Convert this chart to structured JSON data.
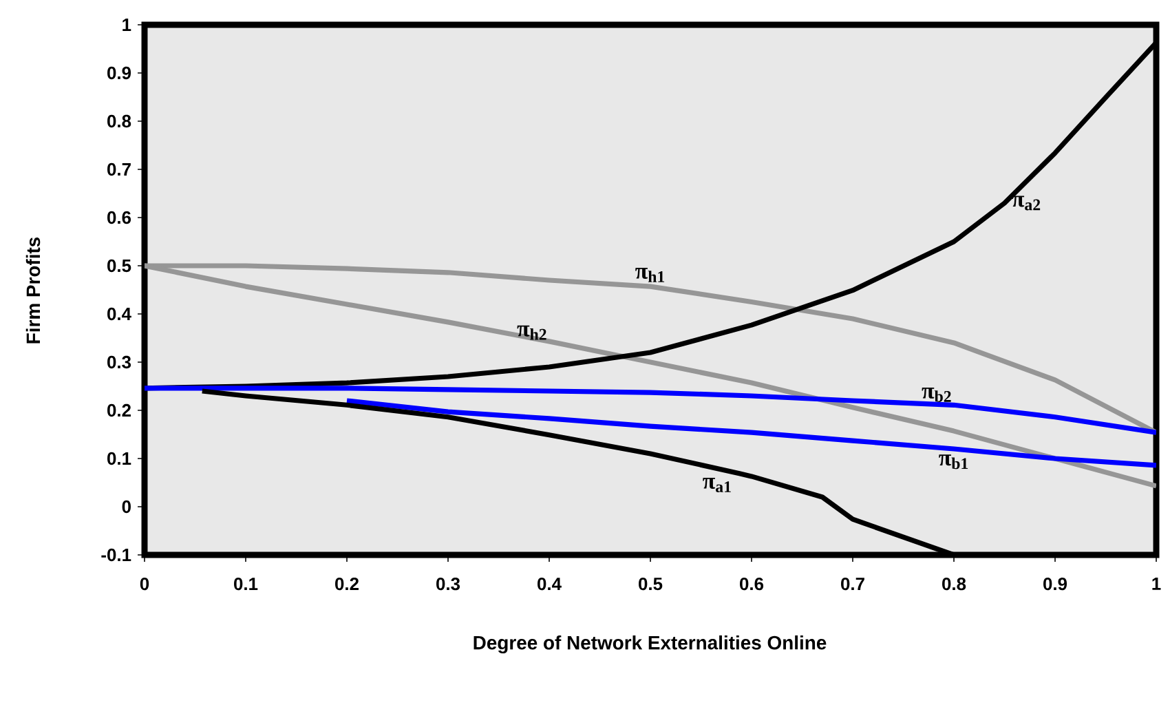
{
  "chart_data": {
    "type": "line",
    "xlabel": "Degree of Network Externalities Online",
    "ylabel": "Firm Profits",
    "xlim": [
      0,
      1
    ],
    "ylim": [
      -0.1,
      1
    ],
    "xticks": [
      0,
      0.1,
      0.2,
      0.3,
      0.4,
      0.5,
      0.6,
      0.7,
      0.8,
      0.9,
      1
    ],
    "yticks": [
      -0.1,
      0,
      0.1,
      0.2,
      0.3,
      0.4,
      0.5,
      0.6,
      0.7,
      0.8,
      0.9,
      1
    ],
    "grid": false,
    "legend": false,
    "line_style": "solid",
    "marker": "none",
    "series": [
      {
        "name": "π$_{h1}$",
        "color": "#969696",
        "x": [
          0,
          0.1,
          0.2,
          0.3,
          0.4,
          0.5,
          0.6,
          0.7,
          0.8,
          0.9,
          1
        ],
        "values": [
          0.5,
          0.5,
          0.494,
          0.486,
          0.47,
          0.457,
          0.425,
          0.39,
          0.34,
          0.263,
          0.154
        ]
      },
      {
        "name": "π$_{h2}$",
        "color": "#969696",
        "x": [
          0,
          0.1,
          0.2,
          0.3,
          0.4,
          0.5,
          0.6,
          0.7,
          0.8,
          0.9,
          1
        ],
        "values": [
          0.5,
          0.457,
          0.42,
          0.383,
          0.343,
          0.3,
          0.257,
          0.206,
          0.157,
          0.1,
          0.043
        ]
      },
      {
        "name": "π$_{a2}$",
        "color": "#000000",
        "x": [
          0,
          0.1,
          0.2,
          0.3,
          0.4,
          0.5,
          0.6,
          0.7,
          0.8,
          0.85,
          0.9,
          0.95,
          1
        ],
        "values": [
          0.246,
          0.25,
          0.257,
          0.27,
          0.29,
          0.32,
          0.377,
          0.449,
          0.55,
          0.63,
          0.734,
          0.849,
          0.963
        ]
      },
      {
        "name": "π$_{b2}$",
        "color": "#0000ff",
        "x": [
          0,
          0.2,
          0.3,
          0.4,
          0.5,
          0.6,
          0.7,
          0.8,
          0.9,
          1
        ],
        "values": [
          0.246,
          0.246,
          0.243,
          0.24,
          0.237,
          0.23,
          0.22,
          0.211,
          0.186,
          0.154
        ]
      },
      {
        "name": "π$_{b1}$",
        "color": "#0000ff",
        "x": [
          0.2,
          0.3,
          0.4,
          0.5,
          0.6,
          0.7,
          0.8,
          0.9,
          1
        ],
        "values": [
          0.22,
          0.197,
          0.183,
          0.167,
          0.154,
          0.137,
          0.12,
          0.1,
          0.086
        ]
      },
      {
        "name": "π$_{a1}$",
        "color": "#000000",
        "x": [
          0.057,
          0.1,
          0.2,
          0.3,
          0.4,
          0.5,
          0.588,
          0.6,
          0.67,
          0.7,
          0.8
        ],
        "values": [
          0.24,
          0.23,
          0.211,
          0.186,
          0.149,
          0.11,
          0.069,
          0.063,
          0.02,
          -0.026,
          -0.1
        ]
      }
    ]
  }
}
